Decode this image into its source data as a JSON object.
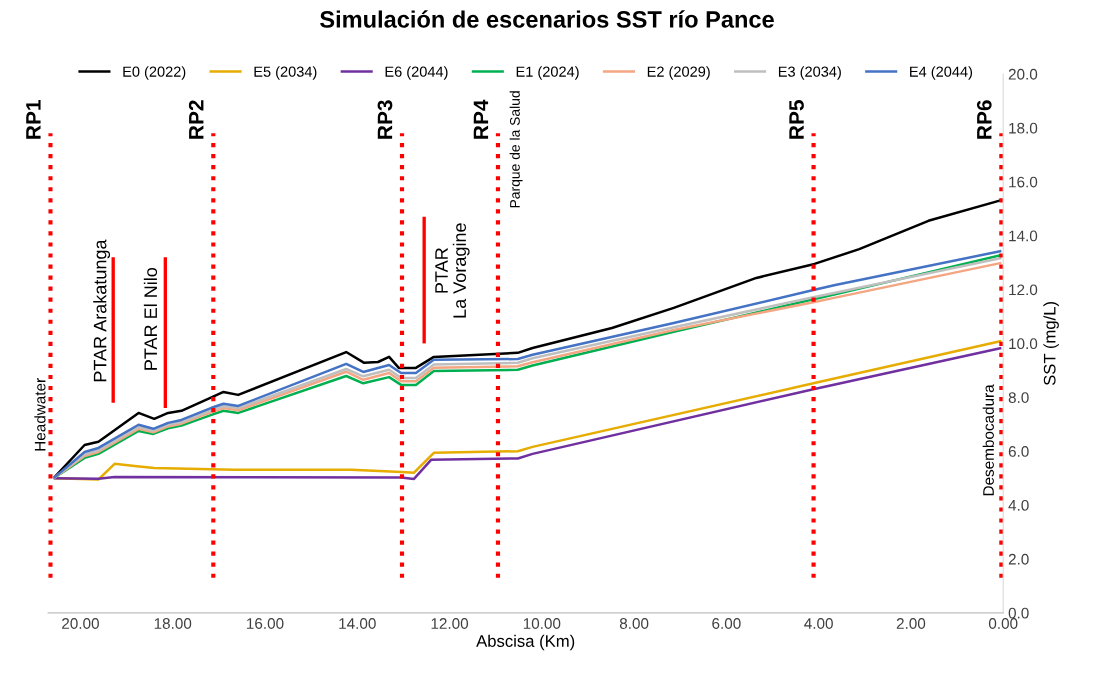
{
  "chart_data": {
    "type": "line",
    "title": "Simulación de escenarios SST río Pance",
    "xlabel": "Abscisa (Km)",
    "ylabel": "SST (mg/L)",
    "xlim": [
      20.7,
      0
    ],
    "xticks": [
      {
        "value": 20,
        "label": "20.00"
      },
      {
        "value": 18,
        "label": "18.00"
      },
      {
        "value": 16,
        "label": "16.00"
      },
      {
        "value": 14,
        "label": "14.00"
      },
      {
        "value": 12,
        "label": "12.00"
      },
      {
        "value": 10,
        "label": "10.00"
      },
      {
        "value": 8,
        "label": "8.00"
      },
      {
        "value": 6,
        "label": "6.00"
      },
      {
        "value": 4,
        "label": "4.00"
      },
      {
        "value": 2,
        "label": "2.00"
      },
      {
        "value": 0,
        "label": "0.00"
      }
    ],
    "ylim": [
      0,
      20
    ],
    "yticks": [
      {
        "value": 0,
        "label": "0.0"
      },
      {
        "value": 2,
        "label": "2.0"
      },
      {
        "value": 4,
        "label": "4.0"
      },
      {
        "value": 6,
        "label": "6.0"
      },
      {
        "value": 8,
        "label": "8.0"
      },
      {
        "value": 10,
        "label": "10.0"
      },
      {
        "value": 12,
        "label": "12.0"
      },
      {
        "value": 14,
        "label": "14.0"
      },
      {
        "value": 16,
        "label": "16.0"
      },
      {
        "value": 18,
        "label": "18.0"
      },
      {
        "value": 20,
        "label": "20.0"
      }
    ],
    "grid": false,
    "legend": "top",
    "line_style": "solid",
    "series": [
      {
        "name": "E0 (2022)",
        "color": "#000000",
        "x": [
          20.58,
          19.91,
          19.61,
          18.74,
          18.4,
          18.1,
          17.81,
          17.16,
          16.9,
          16.58,
          14.24,
          13.85,
          13.55,
          13.31,
          13.1,
          12.73,
          12.34,
          10.52,
          10.2,
          8.48,
          7.14,
          5.35,
          4.09,
          3.12,
          1.62,
          0.04
        ],
        "values": [
          5.0,
          6.23,
          6.35,
          7.42,
          7.2,
          7.42,
          7.5,
          8.0,
          8.2,
          8.09,
          9.68,
          9.28,
          9.31,
          9.5,
          9.09,
          9.09,
          9.5,
          9.65,
          9.83,
          10.57,
          11.32,
          12.43,
          12.95,
          13.5,
          14.55,
          15.32
        ]
      },
      {
        "name": "E5 (2034)",
        "color": "#e6ac00",
        "x": [
          20.58,
          19.61,
          19.26,
          18.83,
          18.4,
          16.67,
          14.13,
          13.05,
          12.77,
          12.34,
          10.52,
          10.2,
          4.09,
          0.04
        ],
        "values": [
          5.0,
          4.95,
          5.53,
          5.45,
          5.38,
          5.31,
          5.31,
          5.23,
          5.2,
          5.94,
          6.0,
          6.16,
          8.53,
          10.09
        ]
      },
      {
        "name": "E6 (2044)",
        "color": "#7030a0",
        "x": [
          20.58,
          19.61,
          19.26,
          13.05,
          12.77,
          12.4,
          10.52,
          10.2,
          4.09,
          0.04
        ],
        "values": [
          5.0,
          4.98,
          5.04,
          5.02,
          4.97,
          5.68,
          5.73,
          5.9,
          8.31,
          9.83
        ]
      },
      {
        "name": "E1 (2024)",
        "color": "#00b050",
        "x": [
          20.58,
          19.91,
          19.61,
          18.74,
          18.42,
          18.1,
          17.81,
          17.16,
          16.9,
          16.58,
          14.24,
          13.87,
          13.31,
          13.05,
          12.73,
          12.34,
          10.52,
          10.2,
          7.14,
          4.09,
          3.64,
          0.04
        ],
        "values": [
          5.0,
          5.75,
          5.9,
          6.75,
          6.64,
          6.85,
          6.95,
          7.35,
          7.5,
          7.42,
          8.79,
          8.52,
          8.75,
          8.46,
          8.46,
          8.98,
          9.02,
          9.18,
          10.43,
          11.65,
          11.82,
          13.28
        ]
      },
      {
        "name": "E2 (2029)",
        "color": "#f4a582",
        "x": [
          20.58,
          19.91,
          19.61,
          18.74,
          18.42,
          18.1,
          17.81,
          17.16,
          16.9,
          16.58,
          14.24,
          13.87,
          13.31,
          13.05,
          12.73,
          12.34,
          10.52,
          10.2,
          7.14,
          4.09,
          3.64,
          0.04
        ],
        "values": [
          5.0,
          5.82,
          5.97,
          6.83,
          6.7,
          6.92,
          7.02,
          7.45,
          7.6,
          7.52,
          8.95,
          8.65,
          8.9,
          8.6,
          8.6,
          9.1,
          9.15,
          9.3,
          10.5,
          11.54,
          11.7,
          12.99
        ]
      },
      {
        "name": "E3 (2034)",
        "color": "#bfbfbf",
        "x": [
          20.58,
          19.91,
          19.61,
          18.74,
          18.42,
          18.1,
          17.81,
          17.16,
          16.9,
          16.58,
          14.24,
          13.87,
          13.31,
          13.05,
          12.73,
          12.34,
          10.52,
          10.2,
          7.14,
          4.09,
          3.64,
          0.04
        ],
        "values": [
          5.0,
          5.88,
          6.03,
          6.9,
          6.76,
          6.98,
          7.08,
          7.52,
          7.67,
          7.6,
          9.05,
          8.78,
          9.02,
          8.72,
          8.72,
          9.22,
          9.28,
          9.45,
          10.6,
          11.72,
          11.88,
          13.17
        ]
      },
      {
        "name": "E4 (2044)",
        "color": "#4472c4",
        "x": [
          20.58,
          19.91,
          19.61,
          18.74,
          18.42,
          18.1,
          17.81,
          17.16,
          16.9,
          16.58,
          14.24,
          13.87,
          13.31,
          13.05,
          12.73,
          12.34,
          10.52,
          10.2,
          7.14,
          4.09,
          3.64,
          0.04
        ],
        "values": [
          5.0,
          5.97,
          6.12,
          6.98,
          6.83,
          7.05,
          7.16,
          7.61,
          7.76,
          7.68,
          9.24,
          8.94,
          9.2,
          8.9,
          8.9,
          9.39,
          9.42,
          9.58,
          10.76,
          11.99,
          12.17,
          13.43
        ]
      },
      {
        "color": "#ff0000",
        "x": [
          19.29,
          19.29
        ],
        "values": [
          7.8,
          13.2
        ]
      },
      {
        "color": "#ff0000",
        "x": [
          18.16,
          18.16
        ],
        "values": [
          7.6,
          13.2
        ]
      },
      {
        "color": "#ff0000",
        "x": [
          12.55,
          12.55
        ],
        "values": [
          10.0,
          14.7
        ]
      }
    ],
    "ref_lines": [
      {
        "axis": "x",
        "value": 20.65,
        "label": "RP1",
        "color": "#ff0000",
        "line_style": "dotted"
      },
      {
        "axis": "x",
        "value": 17.12,
        "label": "RP2",
        "color": "#ff0000",
        "line_style": "dotted"
      },
      {
        "axis": "x",
        "value": 13.03,
        "label": "RP3",
        "color": "#ff0000",
        "line_style": "dotted"
      },
      {
        "axis": "x",
        "value": 10.95,
        "label": "RP4",
        "color": "#ff0000",
        "line_style": "dotted"
      },
      {
        "axis": "x",
        "value": 4.11,
        "label": "RP5",
        "color": "#ff0000",
        "line_style": "dotted"
      },
      {
        "axis": "x",
        "value": 0.04,
        "label": "RP6",
        "color": "#ff0000",
        "line_style": "dotted"
      }
    ],
    "annotations": [
      "PTAR Arakatunga",
      "PTAR El Nilo",
      "PTAR\nLa Voragine",
      "Headwater",
      "Parque de la Salud",
      "Desembocadura"
    ]
  }
}
